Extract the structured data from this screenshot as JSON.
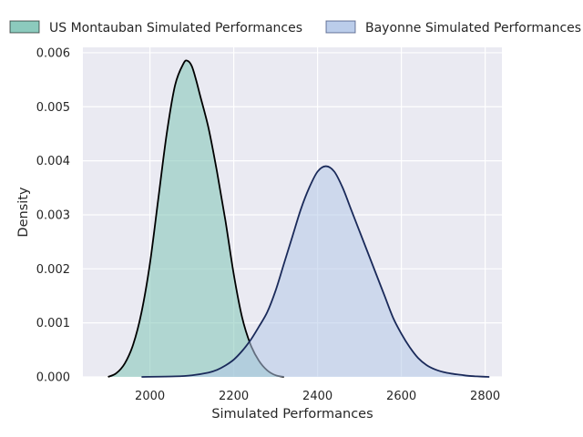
{
  "chart_data": {
    "type": "area",
    "title": "",
    "xlabel": "Simulated Performances",
    "ylabel": "Density",
    "xlim": [
      1840,
      2840
    ],
    "ylim": [
      0,
      0.0061
    ],
    "xticks": [
      2000,
      2200,
      2400,
      2600,
      2800
    ],
    "xtick_labels": [
      "2000",
      "2200",
      "2400",
      "2600",
      "2800"
    ],
    "yticks": [
      0,
      0.001,
      0.002,
      0.003,
      0.004,
      0.005,
      0.006
    ],
    "ytick_labels": [
      "0.000",
      "0.001",
      "0.002",
      "0.003",
      "0.004",
      "0.005",
      "0.006"
    ],
    "grid": true,
    "legend_position": "top, outside plot",
    "background": "#eaeaf2",
    "series": [
      {
        "name": "US Montauban Simulated Performances",
        "fill": "#80c4b6",
        "line": "#000000",
        "x": [
          1900,
          1920,
          1940,
          1960,
          1980,
          2000,
          2020,
          2040,
          2060,
          2080,
          2090,
          2100,
          2110,
          2120,
          2140,
          2160,
          2180,
          2200,
          2220,
          2240,
          2260,
          2280,
          2300,
          2320
        ],
        "y": [
          0,
          7e-05,
          0.00025,
          0.0006,
          0.0012,
          0.0021,
          0.0033,
          0.0045,
          0.0054,
          0.0058,
          0.00585,
          0.00575,
          0.0055,
          0.0052,
          0.0046,
          0.0038,
          0.0029,
          0.0019,
          0.0011,
          0.0006,
          0.0003,
          0.00012,
          3e-05,
          0
        ]
      },
      {
        "name": "Bayonne Simulated Performances",
        "fill": "#b4c8e8",
        "line": "#1a2a5a",
        "x": [
          1980,
          2060,
          2100,
          2140,
          2160,
          2180,
          2200,
          2220,
          2240,
          2260,
          2280,
          2300,
          2320,
          2340,
          2360,
          2380,
          2400,
          2420,
          2440,
          2460,
          2480,
          2500,
          2520,
          2540,
          2560,
          2580,
          2600,
          2620,
          2640,
          2660,
          2680,
          2700,
          2720,
          2740,
          2760,
          2780,
          2810
        ],
        "y": [
          0,
          1e-05,
          3e-05,
          8e-05,
          0.00013,
          0.00021,
          0.00032,
          0.00048,
          0.00068,
          0.00093,
          0.0012,
          0.0016,
          0.0021,
          0.0026,
          0.0031,
          0.0035,
          0.0038,
          0.0039,
          0.0038,
          0.0035,
          0.0031,
          0.0027,
          0.0023,
          0.0019,
          0.0015,
          0.0011,
          0.0008,
          0.00055,
          0.00035,
          0.00022,
          0.00014,
          9e-05,
          6e-05,
          4e-05,
          2e-05,
          1e-05,
          0
        ]
      }
    ]
  }
}
